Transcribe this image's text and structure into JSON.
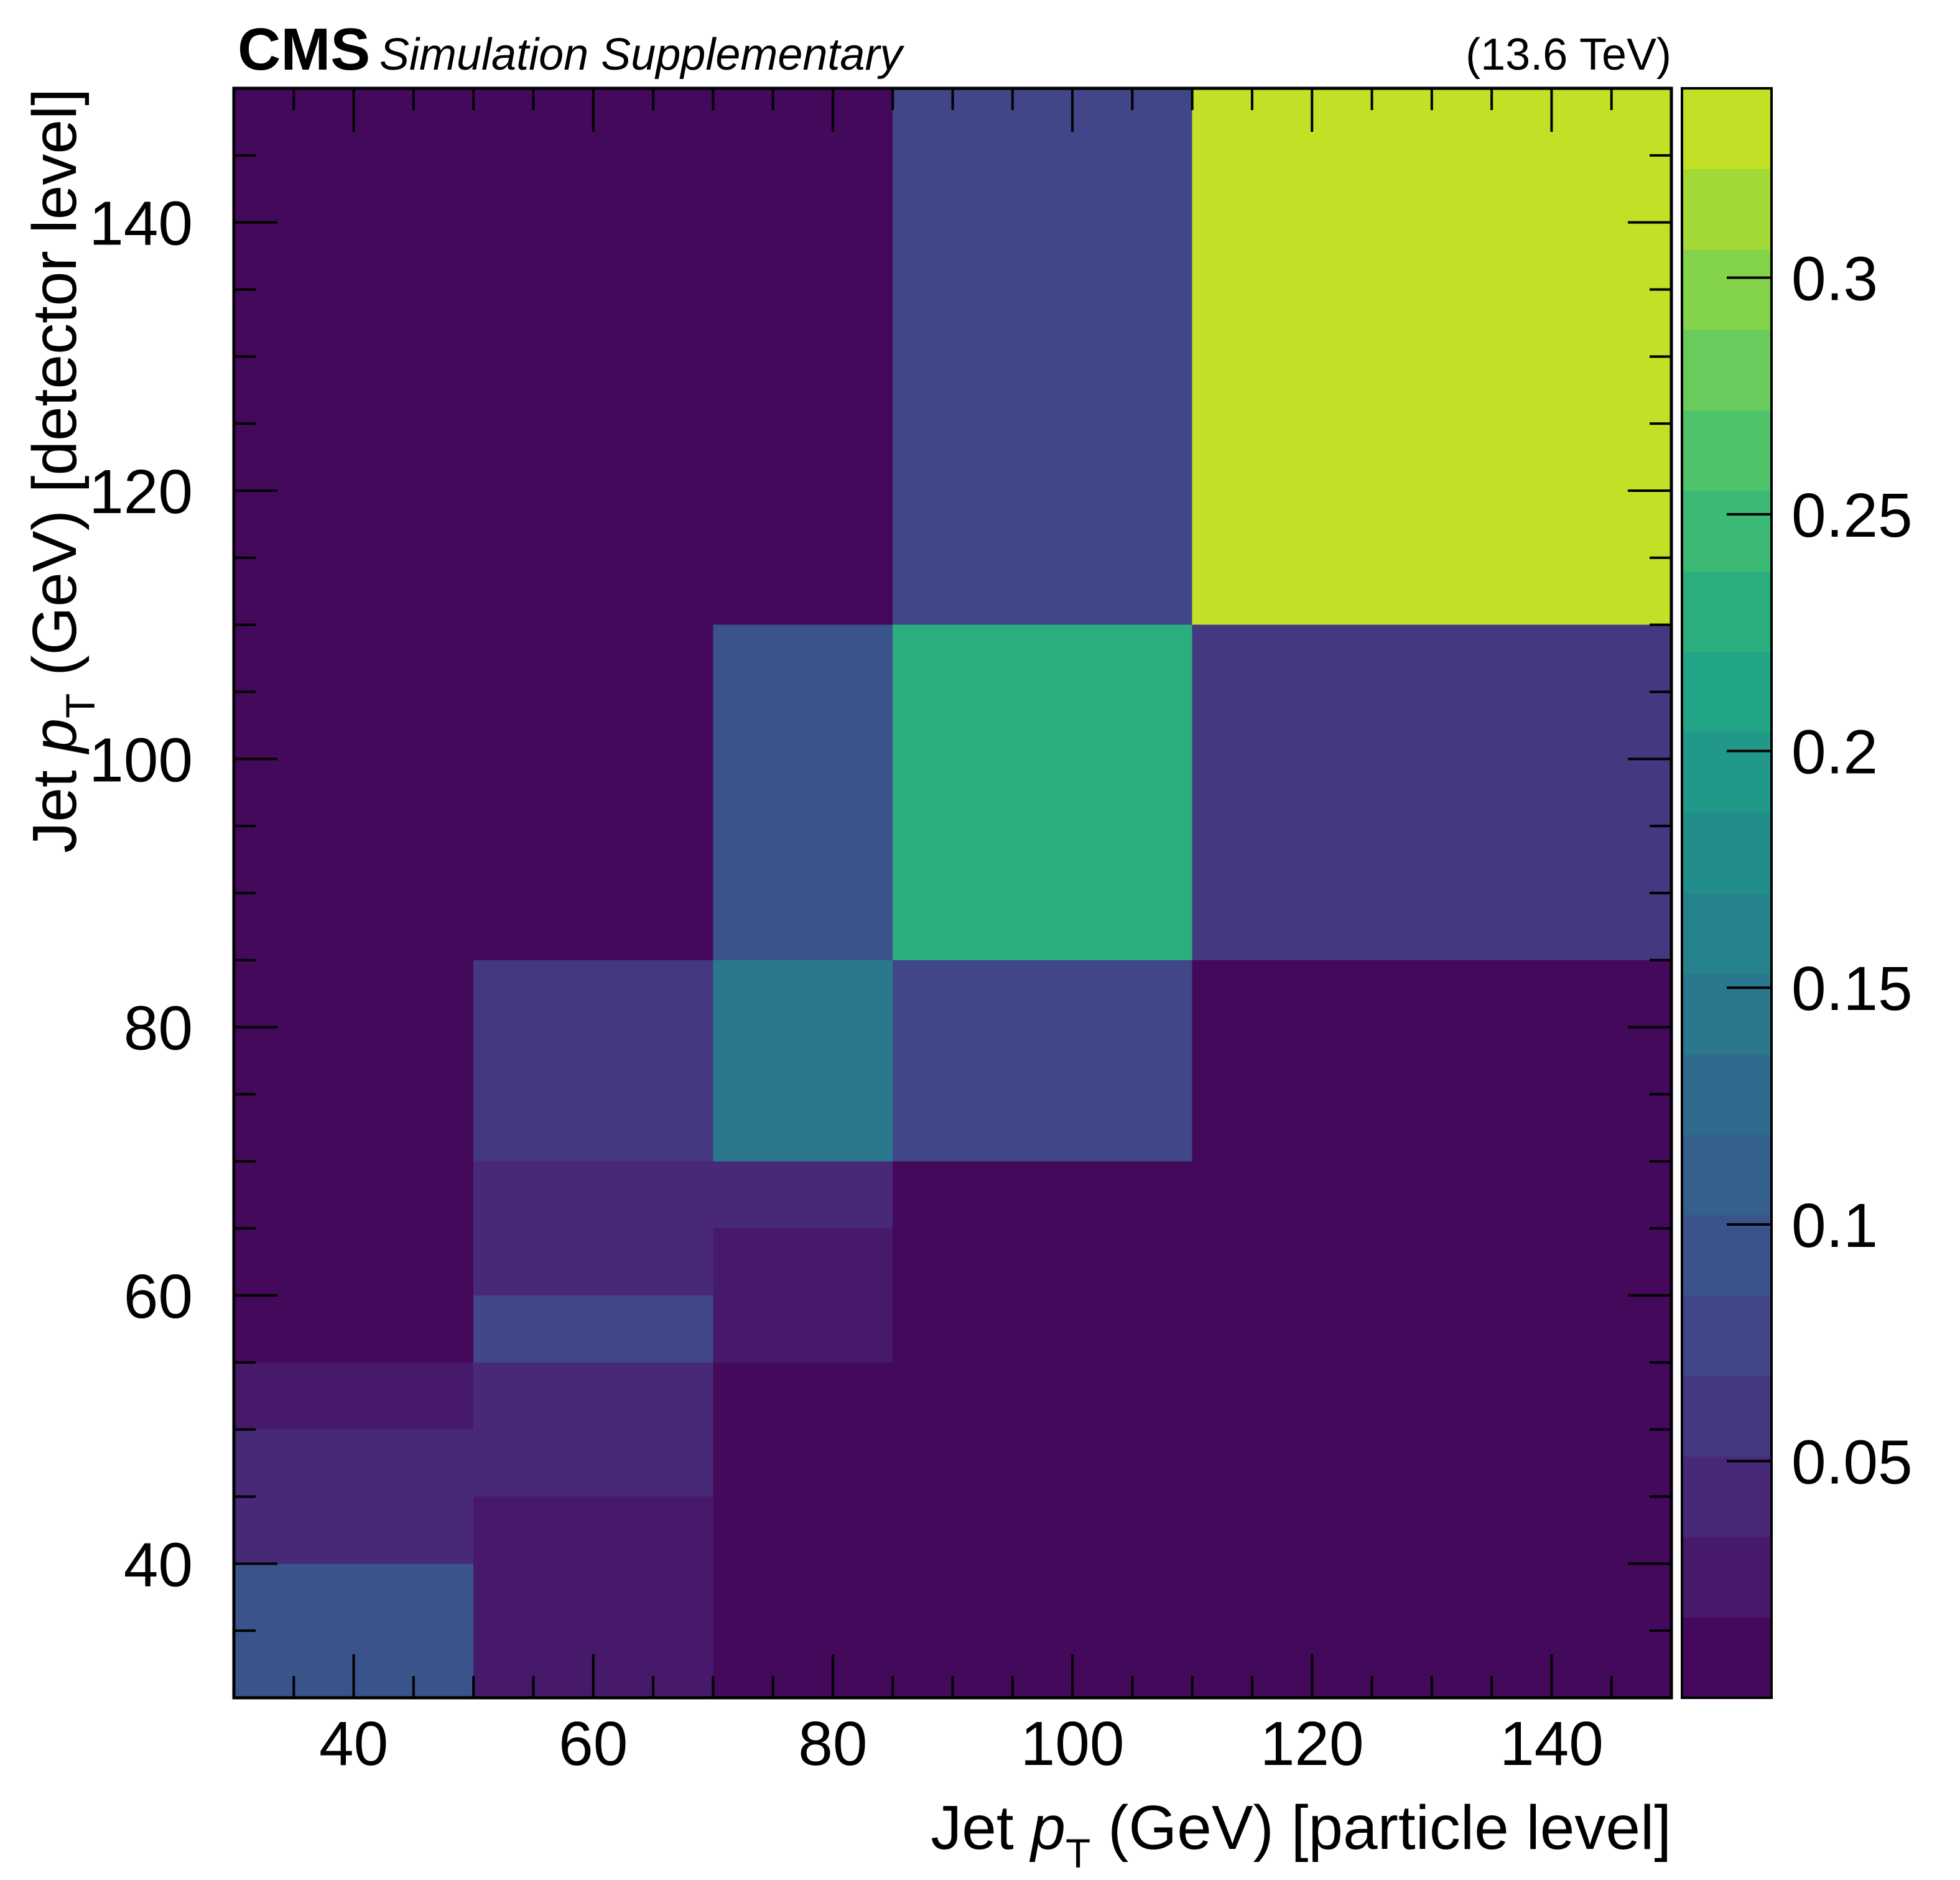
{
  "header": {
    "experiment": "CMS",
    "status": "Simulation Supplementary",
    "energy": "(13.6 TeV)"
  },
  "chart_data": {
    "type": "heatmap",
    "xlabel": {
      "prefix": "Jet ",
      "var": "p",
      "sub": "T",
      "suffix": " (GeV) [particle level]"
    },
    "ylabel": {
      "prefix": "Jet ",
      "var": "p",
      "sub": "T",
      "suffix": " (GeV) [detector level]"
    },
    "xlim": [
      30,
      150
    ],
    "ylim": [
      30,
      150
    ],
    "zlim": [
      0,
      0.34
    ],
    "x_ticks": [
      "40",
      "60",
      "80",
      "100",
      "120",
      "140"
    ],
    "y_ticks": [
      "40",
      "60",
      "80",
      "100",
      "120",
      "140"
    ],
    "z_ticks": [
      "0.05",
      "0.1",
      "0.15",
      "0.2",
      "0.25",
      "0.3"
    ],
    "colorscale": "viridis",
    "colorbar_levels": 20,
    "cells": [
      {
        "x0": 30,
        "x1": 50,
        "y0": 30,
        "y1": 40,
        "z": 0.093
      },
      {
        "x0": 30,
        "x1": 50,
        "y0": 40,
        "y1": 50,
        "z": 0.045
      },
      {
        "x0": 30,
        "x1": 50,
        "y0": 50,
        "y1": 55,
        "z": 0.025
      },
      {
        "x0": 30,
        "x1": 50,
        "y0": 55,
        "y1": 150,
        "z": 0.003
      },
      {
        "x0": 50,
        "x1": 70,
        "y0": 30,
        "y1": 45,
        "z": 0.025
      },
      {
        "x0": 50,
        "x1": 70,
        "y0": 45,
        "y1": 55,
        "z": 0.045
      },
      {
        "x0": 50,
        "x1": 70,
        "y0": 55,
        "y1": 60,
        "z": 0.07
      },
      {
        "x0": 50,
        "x1": 70,
        "y0": 60,
        "y1": 70,
        "z": 0.045
      },
      {
        "x0": 50,
        "x1": 70,
        "y0": 70,
        "y1": 85,
        "z": 0.06
      },
      {
        "x0": 50,
        "x1": 70,
        "y0": 85,
        "y1": 150,
        "z": 0.003
      },
      {
        "x0": 70,
        "x1": 85,
        "y0": 30,
        "y1": 55,
        "z": 0.003
      },
      {
        "x0": 70,
        "x1": 85,
        "y0": 55,
        "y1": 65,
        "z": 0.025
      },
      {
        "x0": 70,
        "x1": 85,
        "y0": 65,
        "y1": 70,
        "z": 0.045
      },
      {
        "x0": 70,
        "x1": 85,
        "y0": 70,
        "y1": 85,
        "z": 0.15
      },
      {
        "x0": 70,
        "x1": 85,
        "y0": 85,
        "y1": 110,
        "z": 0.093
      },
      {
        "x0": 70,
        "x1": 85,
        "y0": 110,
        "y1": 150,
        "z": 0.003
      },
      {
        "x0": 85,
        "x1": 110,
        "y0": 30,
        "y1": 70,
        "z": 0.003
      },
      {
        "x0": 85,
        "x1": 110,
        "y0": 70,
        "y1": 85,
        "z": 0.07
      },
      {
        "x0": 85,
        "x1": 110,
        "y0": 85,
        "y1": 110,
        "z": 0.23
      },
      {
        "x0": 85,
        "x1": 110,
        "y0": 110,
        "y1": 150,
        "z": 0.07
      },
      {
        "x0": 110,
        "x1": 150,
        "y0": 30,
        "y1": 85,
        "z": 0.003
      },
      {
        "x0": 110,
        "x1": 150,
        "y0": 85,
        "y1": 110,
        "z": 0.055
      },
      {
        "x0": 110,
        "x1": 150,
        "y0": 110,
        "y1": 150,
        "z": 0.34
      }
    ]
  }
}
